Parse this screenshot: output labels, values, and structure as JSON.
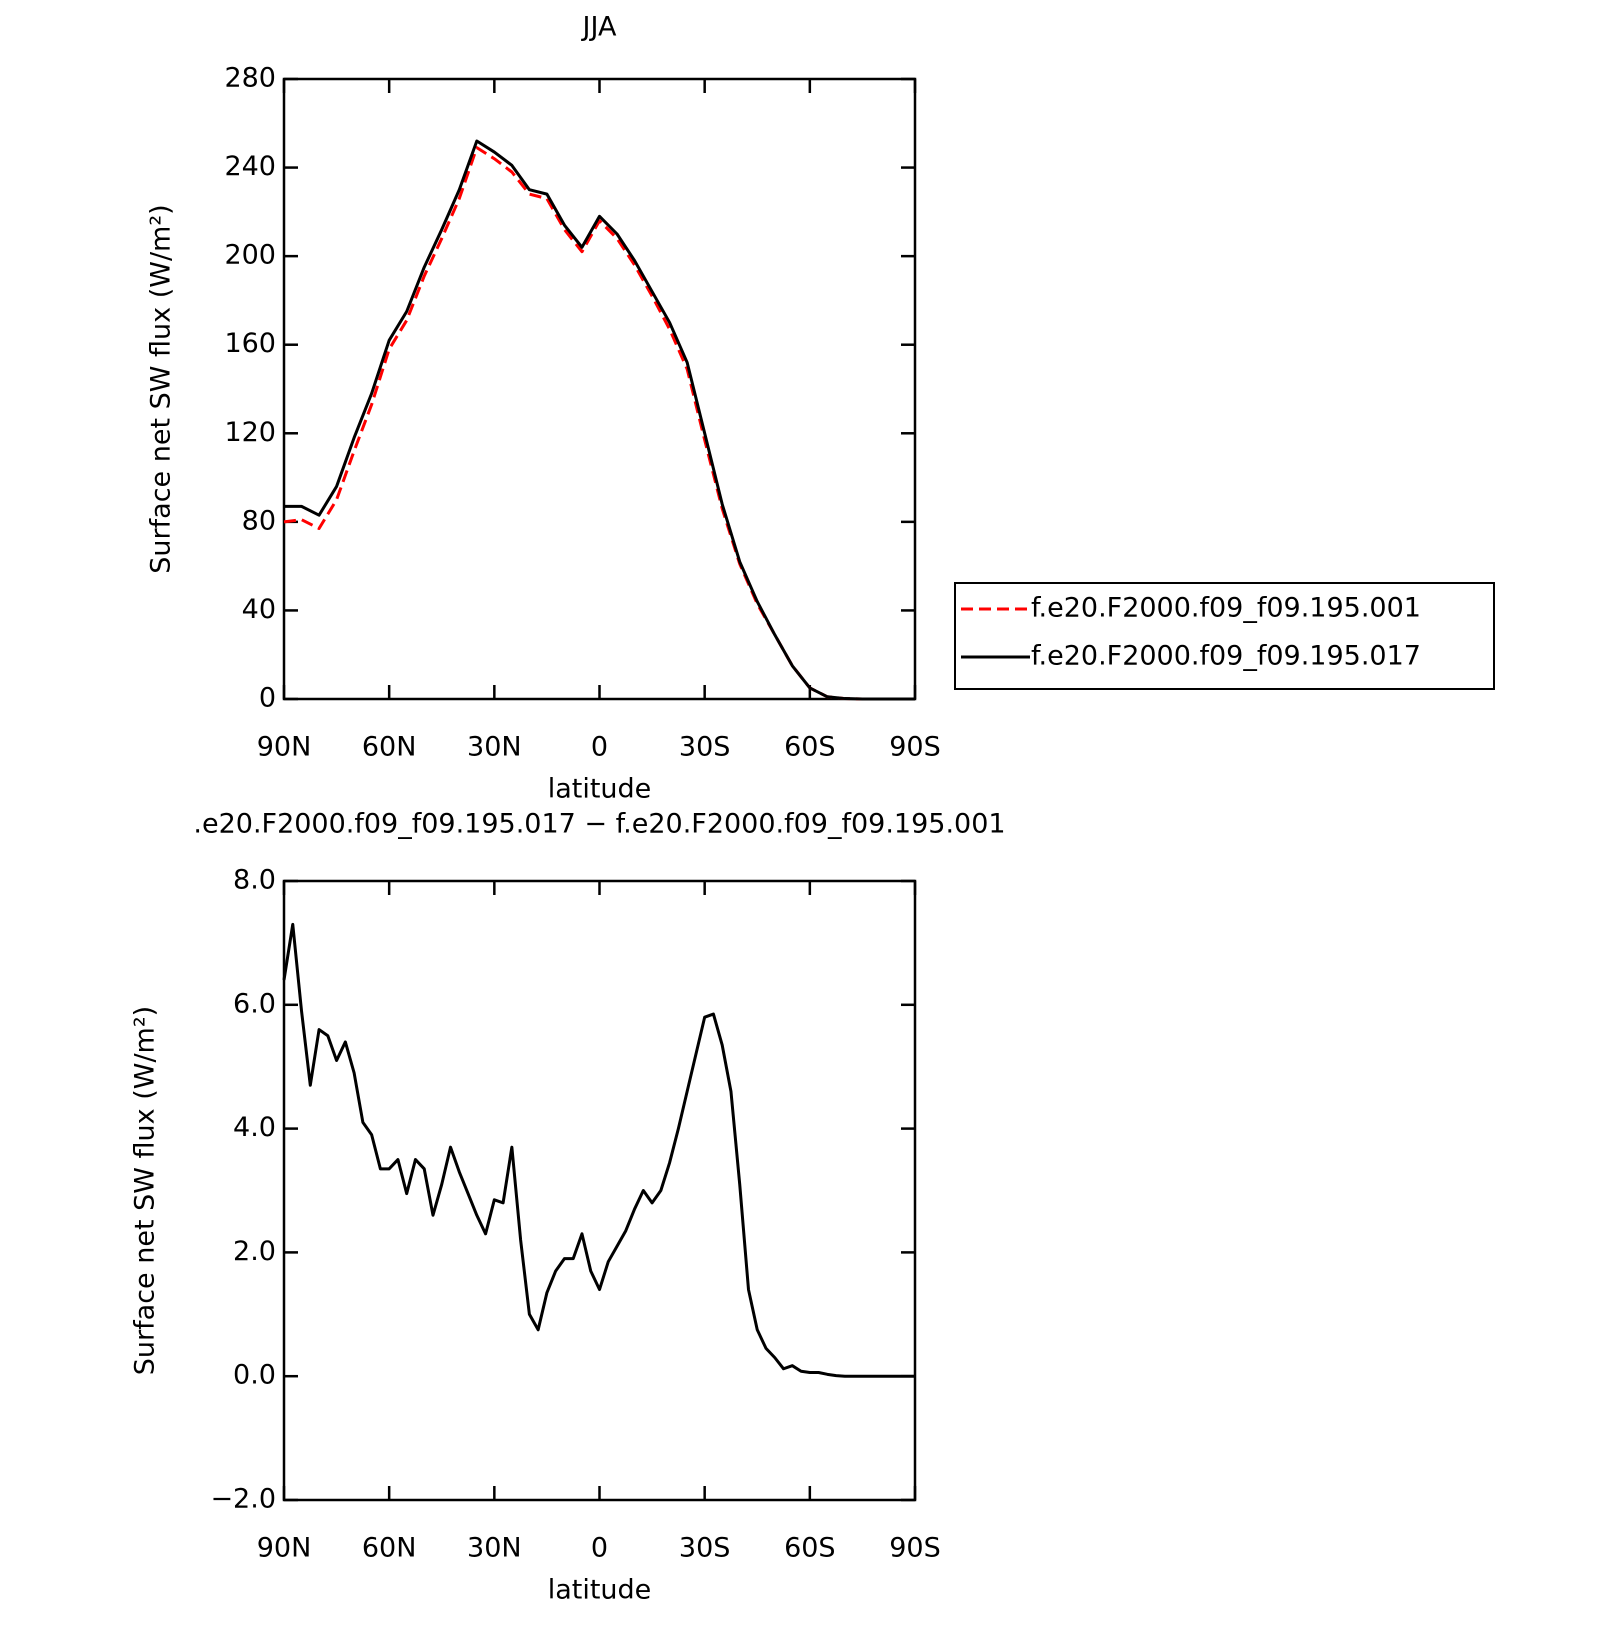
{
  "chart_data": [
    {
      "type": "line",
      "title": "JJA",
      "xlabel": "latitude",
      "ylabel": "Surface net SW flux (W/m²)",
      "x": [
        90,
        85,
        80,
        75,
        70,
        65,
        60,
        55,
        50,
        45,
        40,
        35,
        30,
        25,
        20,
        15,
        10,
        5,
        0,
        -5,
        -10,
        -15,
        -20,
        -25,
        -30,
        -35,
        -40,
        -45,
        -50,
        -55,
        -60,
        -65,
        -70,
        -75,
        -80,
        -85,
        -90
      ],
      "series": [
        {
          "name": "f.e20.F2000.f09_f09.195.001",
          "color": "#ff0000",
          "linestyle": "dashed",
          "values": [
            80,
            81,
            77,
            90,
            112,
            133,
            158,
            171,
            191,
            208,
            226,
            249,
            244,
            238,
            228,
            226,
            212,
            202,
            216,
            208,
            196,
            182,
            167,
            149,
            117,
            86,
            61,
            43,
            29,
            15,
            5,
            1,
            0.2,
            0,
            0,
            0,
            0
          ]
        },
        {
          "name": "f.e20.F2000.f09_f09.195.017",
          "color": "#000000",
          "linestyle": "solid",
          "values": [
            87,
            87,
            83,
            96,
            118,
            138,
            162,
            175,
            195,
            212,
            230,
            252,
            247,
            241,
            230,
            228,
            214,
            204,
            218,
            210,
            198,
            184,
            170,
            152,
            120,
            88,
            62,
            44,
            29,
            15,
            5,
            1,
            0.2,
            0,
            0,
            0,
            0
          ]
        }
      ],
      "xlim": [
        90,
        -90
      ],
      "xticks": [
        {
          "value": 90,
          "label": "90N"
        },
        {
          "value": 60,
          "label": "60N"
        },
        {
          "value": 30,
          "label": "30N"
        },
        0,
        {
          "value": -30,
          "label": "30S"
        },
        {
          "value": -60,
          "label": "60S"
        },
        {
          "value": -90,
          "label": "90S"
        }
      ],
      "ylim": [
        0,
        280
      ],
      "yticks": [
        0,
        40,
        80,
        120,
        160,
        200,
        240,
        280
      ],
      "legend": "right"
    },
    {
      "type": "line",
      "title": ".e20.F2000.f09_f09.195.017 − f.e20.F2000.f09_f09.195.001",
      "xlabel": "latitude",
      "ylabel": "Surface net SW flux (W/m²)",
      "x": [
        90,
        87.5,
        85,
        82.5,
        80,
        77.5,
        75,
        72.5,
        70,
        67.5,
        65,
        62.5,
        60,
        57.5,
        55,
        52.5,
        50,
        47.5,
        45,
        42.5,
        40,
        37.5,
        35,
        32.5,
        30,
        27.5,
        25,
        22.5,
        20,
        17.5,
        15,
        12.5,
        10,
        7.5,
        5,
        2.5,
        0,
        -2.5,
        -5,
        -7.5,
        -10,
        -12.5,
        -15,
        -17.5,
        -20,
        -22.5,
        -25,
        -27.5,
        -30,
        -32.5,
        -35,
        -37.5,
        -40,
        -42.5,
        -45,
        -47.5,
        -50,
        -52.5,
        -55,
        -57.5,
        -60,
        -62.5,
        -65,
        -67.5,
        -70,
        -72.5,
        -75,
        -77.5,
        -80,
        -82.5,
        -85,
        -87.5,
        -90
      ],
      "series": [
        {
          "name": "difference",
          "color": "#000000",
          "linestyle": "solid",
          "values": [
            6.4,
            7.3,
            5.9,
            4.7,
            5.6,
            5.5,
            5.1,
            5.4,
            4.9,
            4.1,
            3.9,
            3.35,
            3.35,
            3.5,
            2.95,
            3.5,
            3.35,
            2.6,
            3.1,
            3.7,
            3.3,
            2.95,
            2.6,
            2.3,
            2.85,
            2.8,
            3.7,
            2.2,
            1.0,
            0.75,
            1.35,
            1.7,
            1.9,
            1.9,
            2.3,
            1.7,
            1.4,
            1.85,
            2.1,
            2.35,
            2.7,
            3.0,
            2.8,
            3.0,
            3.45,
            4.0,
            4.6,
            5.2,
            5.8,
            5.85,
            5.35,
            4.6,
            3.1,
            1.4,
            0.75,
            0.45,
            0.3,
            0.12,
            0.17,
            0.08,
            0.06,
            0.06,
            0.03,
            0.01,
            0,
            0,
            0,
            0,
            0,
            0,
            0,
            0,
            0
          ]
        }
      ],
      "xlim": [
        90,
        -90
      ],
      "xticks": [
        {
          "value": 90,
          "label": "90N"
        },
        {
          "value": 60,
          "label": "60N"
        },
        {
          "value": 30,
          "label": "30N"
        },
        0,
        {
          "value": -30,
          "label": "30S"
        },
        {
          "value": -60,
          "label": "60S"
        },
        {
          "value": -90,
          "label": "90S"
        }
      ],
      "ylim": [
        -2,
        8
      ],
      "yticks": [
        {
          "value": -2,
          "label": "−2.0"
        },
        {
          "value": 0,
          "label": "0.0"
        },
        {
          "value": 2,
          "label": "2.0"
        },
        {
          "value": 4,
          "label": "4.0"
        },
        {
          "value": 6,
          "label": "6.0"
        },
        {
          "value": 8,
          "label": "8.0"
        }
      ]
    }
  ]
}
